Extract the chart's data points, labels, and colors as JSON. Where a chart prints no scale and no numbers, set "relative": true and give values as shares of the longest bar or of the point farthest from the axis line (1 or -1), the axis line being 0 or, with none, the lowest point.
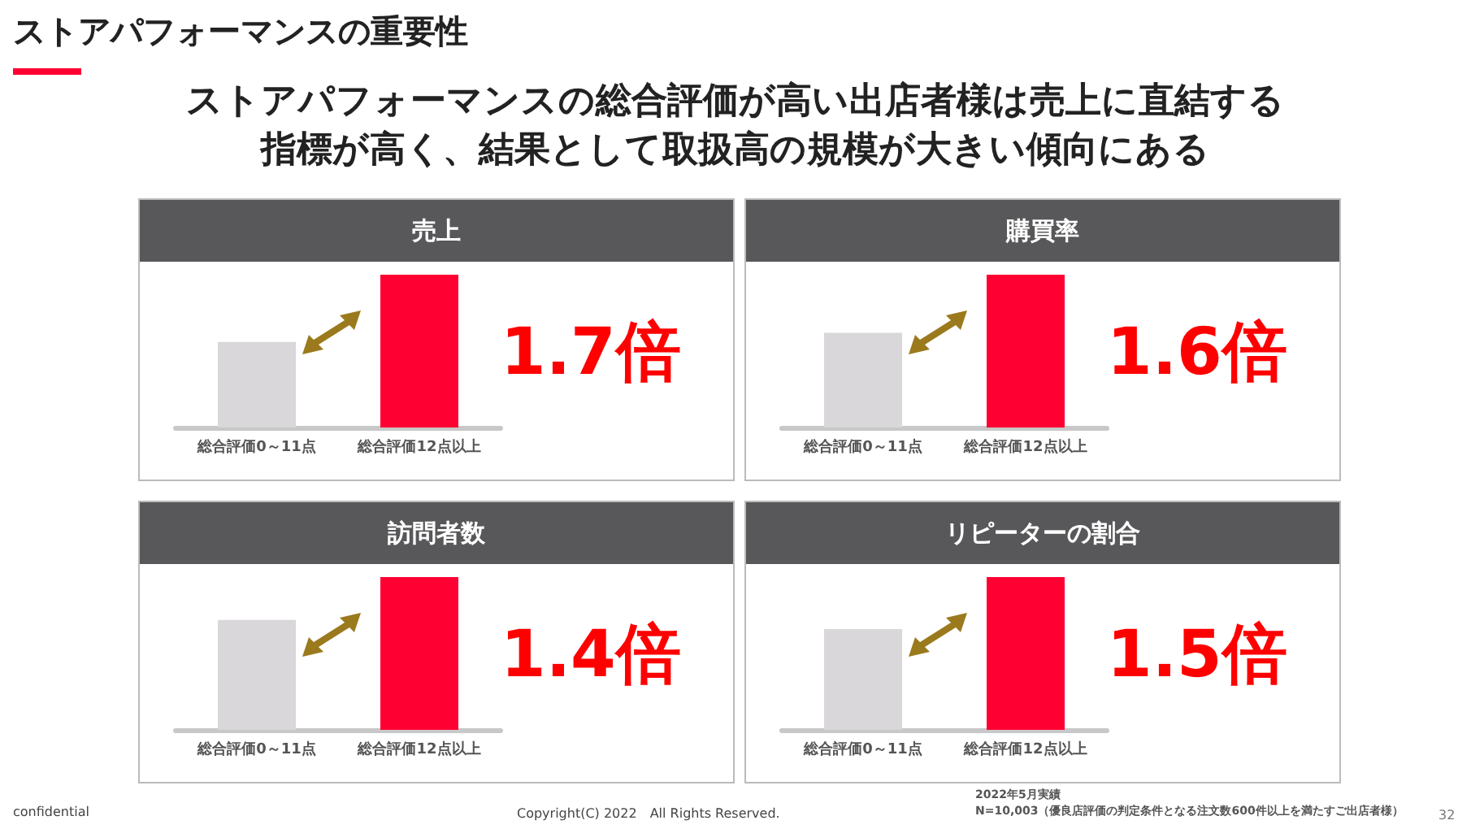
{
  "chart_data": [
    {
      "type": "other",
      "title": "ストアパフォーマンスの重要性",
      "subtitle": "ストアパフォーマンスの総合評価が高い出店者様は売上に直結する指標が高く、結果として取扱高の規模が大きい傾向にある",
      "annotations": [
        "confidential",
        "Copyright(C) 2022　All Rights Reserved.",
        "2022年5月実績\nN=10,003（優良店評価の判定条件となる注文数600件以上を満たすご出店者様）",
        "32"
      ]
    },
    {
      "type": "bar",
      "title": "売上",
      "categories": [
        "総合評価0～11点",
        "総合評価12点以上"
      ],
      "values": [
        0.56,
        1
      ],
      "colors": [
        "#d9d7da",
        "#ff0033"
      ],
      "relative": true,
      "annotations": [
        "1.7倍"
      ]
    },
    {
      "type": "bar",
      "title": "購買率",
      "categories": [
        "総合評価0～11点",
        "総合評価12点以上"
      ],
      "values": [
        0.62,
        1
      ],
      "colors": [
        "#d9d7da",
        "#ff0033"
      ],
      "relative": true,
      "annotations": [
        "1.6倍"
      ]
    },
    {
      "type": "bar",
      "title": "訪問者数",
      "categories": [
        "総合評価0～11点",
        "総合評価12点以上"
      ],
      "values": [
        0.72,
        1
      ],
      "colors": [
        "#d9d7da",
        "#ff0033"
      ],
      "relative": true,
      "annotations": [
        "1.4倍"
      ]
    },
    {
      "type": "bar",
      "title": "リピーターの割合",
      "categories": [
        "総合評価0～11点",
        "総合評価12点以上"
      ],
      "values": [
        0.66,
        1
      ],
      "colors": [
        "#d9d7da",
        "#ff0033"
      ],
      "relative": true,
      "annotations": [
        "1.5倍"
      ]
    }
  ]
}
